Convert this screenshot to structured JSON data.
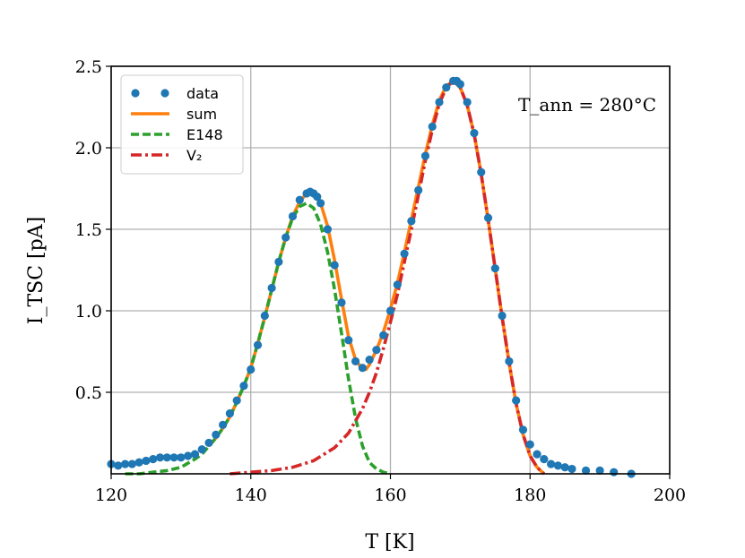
{
  "chart_data": {
    "type": "line",
    "title": "",
    "xlabel": "T [K]",
    "ylabel": "I_TSC [pA]",
    "xlim": [
      120,
      200
    ],
    "ylim": [
      0,
      2.5
    ],
    "xticks": [
      120,
      140,
      160,
      180,
      200
    ],
    "xtick_labels": [
      "120",
      "140",
      "160",
      "180",
      "200"
    ],
    "yticks": [
      0.5,
      1.0,
      1.5,
      2.0,
      2.5
    ],
    "ytick_labels": [
      "0.5",
      "1.0",
      "1.5",
      "2.0",
      "2.5"
    ],
    "grid": true,
    "legend_position": "top-left",
    "annotation": "T_ann = 280°C",
    "series": [
      {
        "name": "data",
        "style": "points",
        "color": "#1f77b4",
        "x": [
          120,
          121,
          122,
          123,
          124,
          125,
          126,
          127,
          128,
          129,
          130,
          131,
          132,
          133,
          134,
          135,
          136,
          137,
          138,
          139,
          140,
          141,
          142,
          143,
          144,
          145,
          146,
          147,
          148,
          148.5,
          149,
          149.5,
          150,
          151,
          152,
          153,
          154,
          155,
          156,
          157,
          158,
          159,
          160,
          161,
          162,
          163,
          164,
          165,
          166,
          167,
          168,
          169,
          169.5,
          170,
          171,
          172,
          173,
          174,
          175,
          176,
          177,
          178,
          179,
          180,
          181,
          182,
          183,
          184,
          185,
          186,
          188,
          190,
          192,
          194.5
        ],
        "y": [
          0.06,
          0.05,
          0.06,
          0.06,
          0.07,
          0.08,
          0.09,
          0.1,
          0.1,
          0.1,
          0.1,
          0.11,
          0.12,
          0.15,
          0.19,
          0.24,
          0.3,
          0.37,
          0.45,
          0.54,
          0.64,
          0.79,
          0.97,
          1.14,
          1.3,
          1.45,
          1.58,
          1.68,
          1.72,
          1.73,
          1.72,
          1.7,
          1.66,
          1.5,
          1.28,
          1.05,
          0.82,
          0.69,
          0.65,
          0.7,
          0.76,
          0.85,
          1.0,
          1.16,
          1.35,
          1.55,
          1.74,
          1.95,
          2.13,
          2.28,
          2.37,
          2.41,
          2.41,
          2.39,
          2.28,
          2.09,
          1.85,
          1.57,
          1.26,
          0.97,
          0.69,
          0.45,
          0.27,
          0.18,
          0.12,
          0.09,
          0.06,
          0.05,
          0.04,
          0.03,
          0.02,
          0.02,
          0.01,
          0.0
        ]
      },
      {
        "name": "sum",
        "style": "solid",
        "color": "#ff7f0e",
        "x": [
          134,
          135,
          136,
          137,
          138,
          139,
          140,
          141,
          142,
          143,
          144,
          145,
          146,
          147,
          148,
          148.5,
          149,
          150,
          151,
          152,
          153,
          154,
          155,
          156,
          156.5,
          157,
          158,
          159,
          160,
          161,
          162,
          163,
          164,
          165,
          166,
          167,
          168,
          169,
          170,
          171,
          172,
          173,
          174,
          175,
          176,
          177,
          178,
          179,
          180,
          181,
          182
        ],
        "y": [
          0.17,
          0.22,
          0.28,
          0.35,
          0.44,
          0.54,
          0.65,
          0.8,
          0.96,
          1.13,
          1.3,
          1.45,
          1.58,
          1.67,
          1.72,
          1.73,
          1.72,
          1.66,
          1.52,
          1.31,
          1.07,
          0.84,
          0.7,
          0.64,
          0.64,
          0.67,
          0.76,
          0.87,
          1.01,
          1.17,
          1.36,
          1.56,
          1.76,
          1.96,
          2.14,
          2.29,
          2.38,
          2.41,
          2.37,
          2.26,
          2.08,
          1.84,
          1.56,
          1.26,
          0.96,
          0.68,
          0.43,
          0.24,
          0.11,
          0.04,
          0.0
        ]
      },
      {
        "name": "E148",
        "style": "dashed",
        "color": "#2ca02c",
        "x": [
          122,
          124,
          126,
          128,
          130,
          132,
          133,
          134,
          135,
          136,
          137,
          138,
          139,
          140,
          141,
          142,
          143,
          144,
          145,
          146,
          147,
          148,
          149,
          150,
          151,
          152,
          153,
          154,
          155,
          156,
          157,
          158,
          159,
          160
        ],
        "y": [
          0.0,
          0.0,
          0.01,
          0.02,
          0.04,
          0.09,
          0.12,
          0.17,
          0.22,
          0.28,
          0.35,
          0.44,
          0.54,
          0.65,
          0.8,
          0.96,
          1.13,
          1.3,
          1.45,
          1.57,
          1.64,
          1.66,
          1.63,
          1.53,
          1.36,
          1.13,
          0.86,
          0.58,
          0.34,
          0.17,
          0.07,
          0.03,
          0.01,
          0.0
        ]
      },
      {
        "name": "V₂",
        "style": "dashdot",
        "color": "#d62728",
        "x": [
          137,
          140,
          143,
          146,
          149,
          152,
          154,
          156,
          157,
          158,
          159,
          160,
          161,
          162,
          163,
          164,
          165,
          166,
          167,
          168,
          169,
          170,
          171,
          172,
          173,
          174,
          175,
          176,
          177,
          178,
          179,
          180,
          181,
          182
        ],
        "y": [
          0.0,
          0.01,
          0.02,
          0.04,
          0.08,
          0.16,
          0.25,
          0.4,
          0.5,
          0.62,
          0.77,
          0.93,
          1.1,
          1.3,
          1.5,
          1.71,
          1.92,
          2.11,
          2.27,
          2.37,
          2.41,
          2.37,
          2.26,
          2.08,
          1.84,
          1.56,
          1.26,
          0.96,
          0.68,
          0.43,
          0.24,
          0.11,
          0.04,
          0.0
        ]
      }
    ]
  }
}
